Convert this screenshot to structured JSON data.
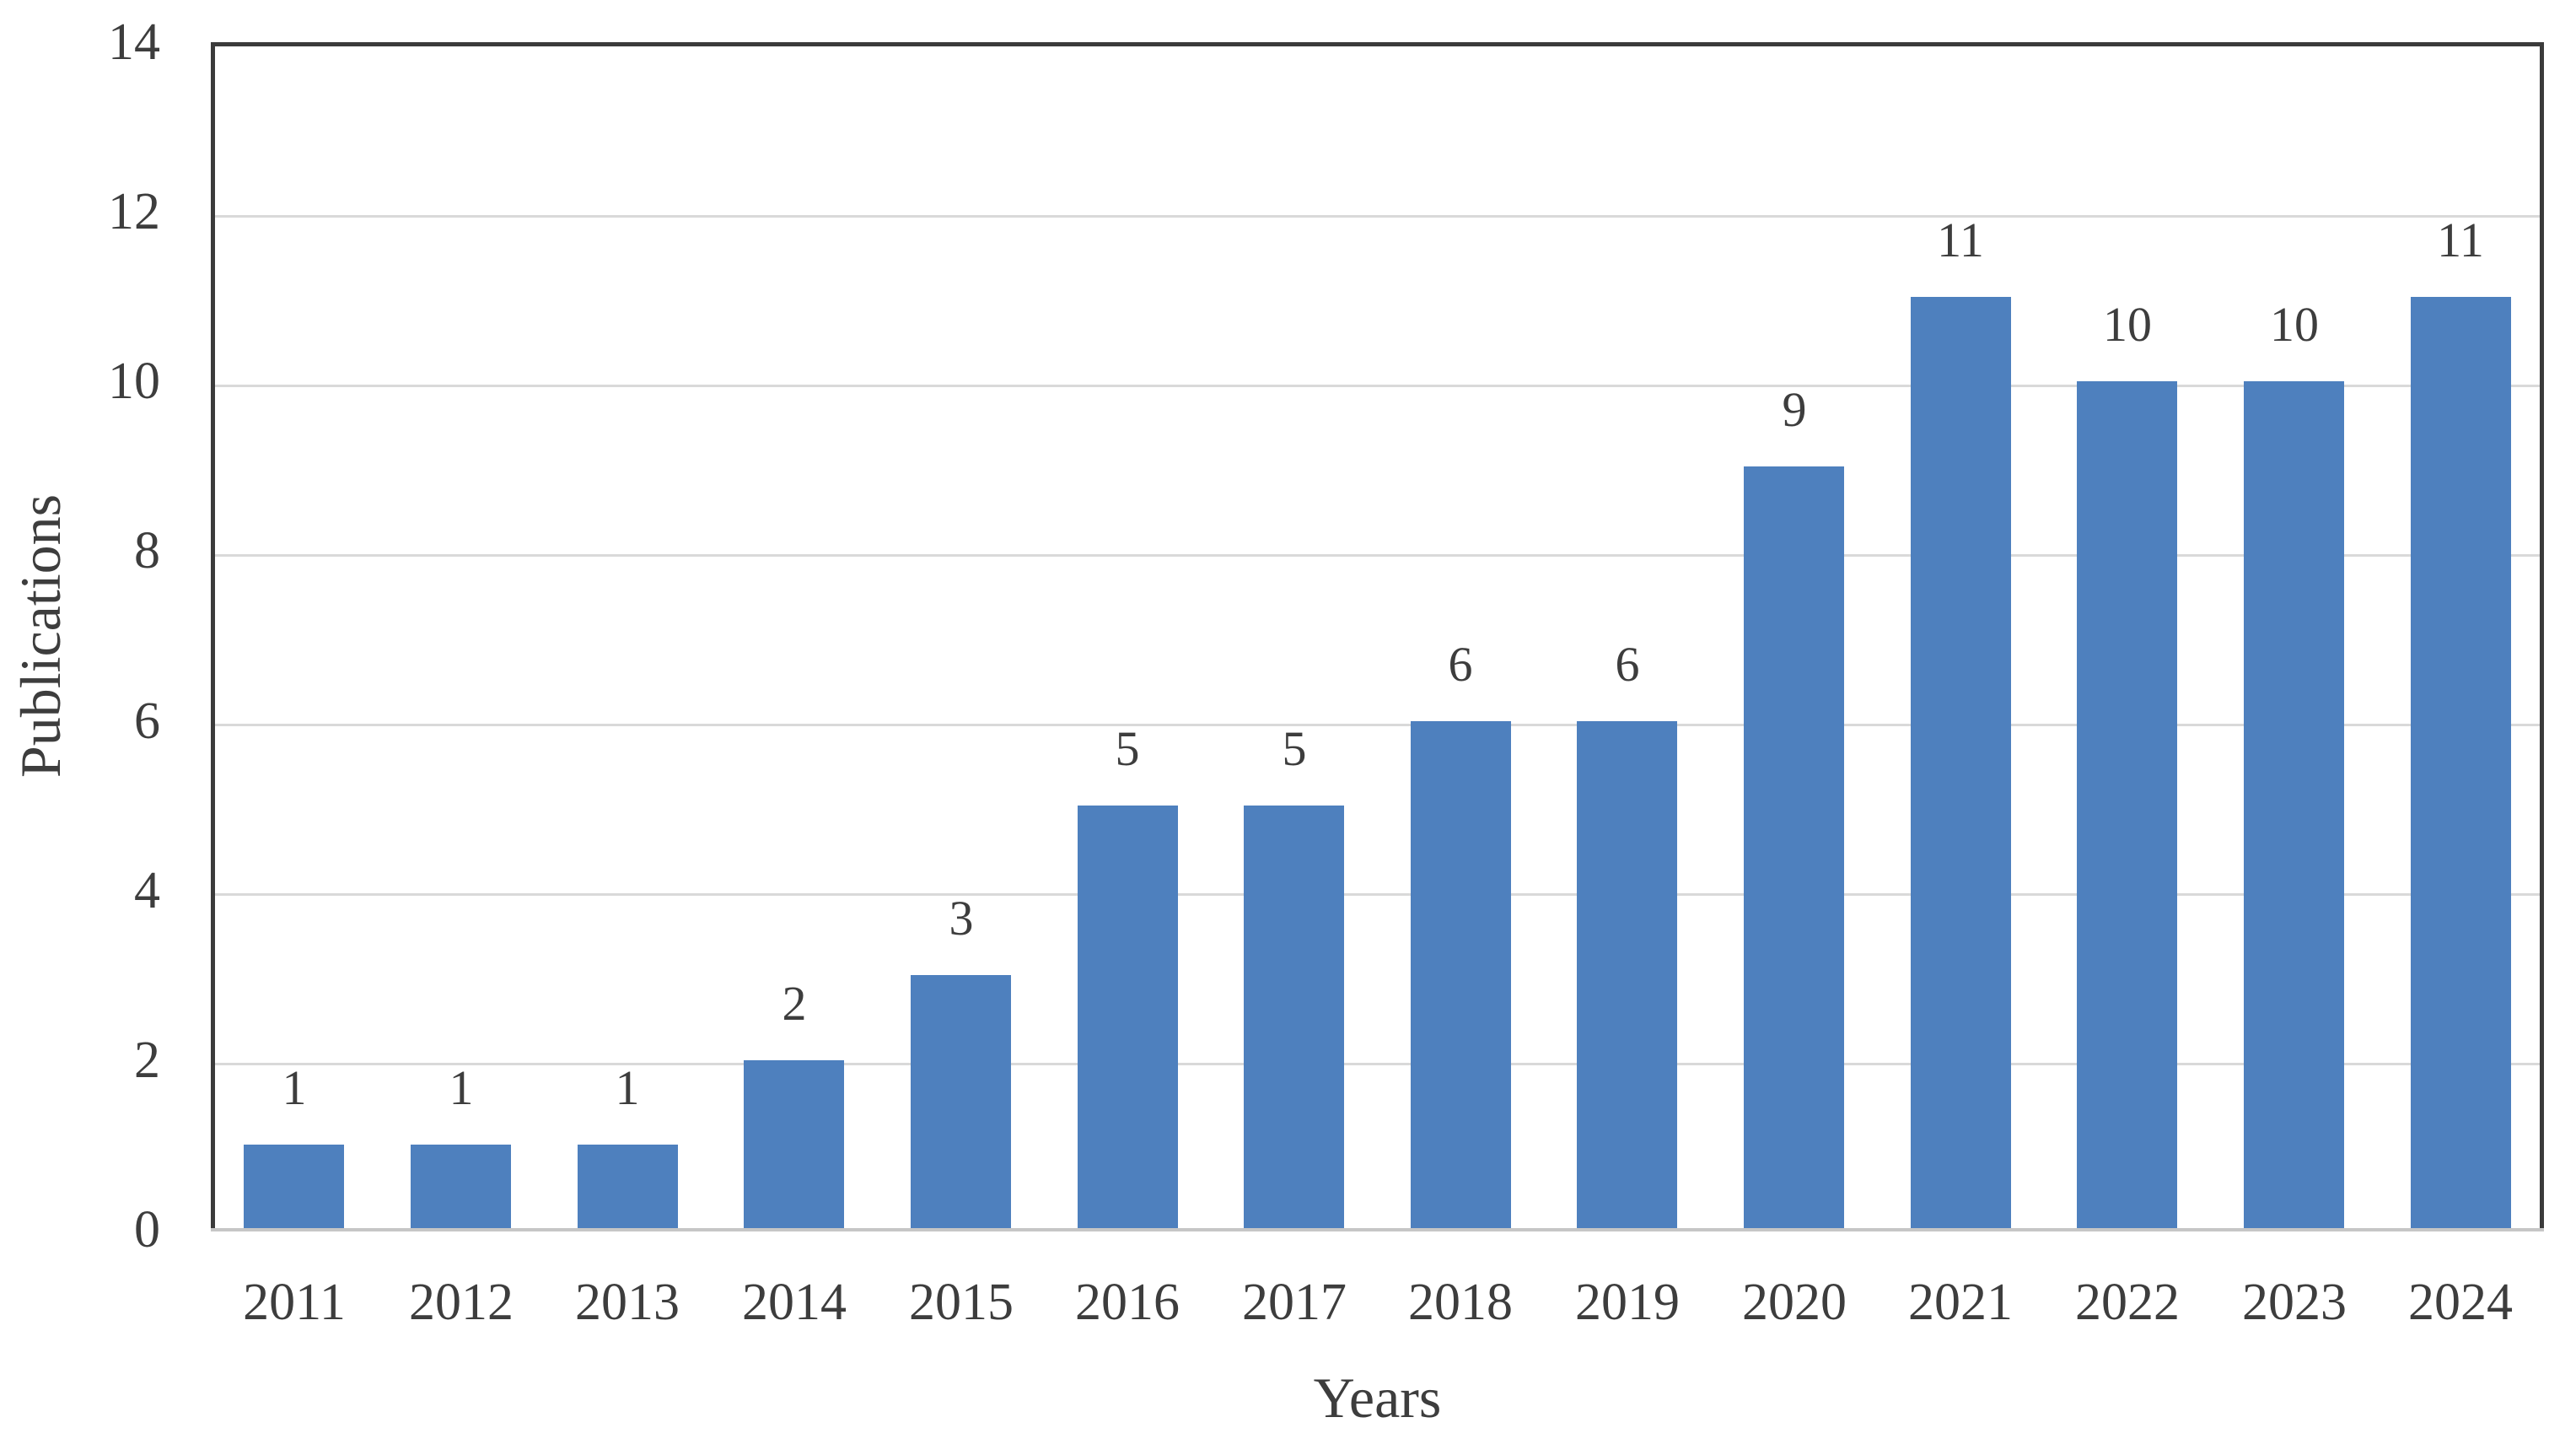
{
  "chart_data": {
    "type": "bar",
    "title": "",
    "categories": [
      "2011",
      "2012",
      "2013",
      "2014",
      "2015",
      "2016",
      "2017",
      "2018",
      "2019",
      "2020",
      "2021",
      "2022",
      "2023",
      "2024"
    ],
    "values": [
      1,
      1,
      1,
      2,
      3,
      5,
      5,
      6,
      6,
      9,
      11,
      10,
      10,
      11
    ],
    "data_labels": [
      "1",
      "1",
      "1",
      "2",
      "3",
      "5",
      "5",
      "6",
      "6",
      "9",
      "11",
      "10",
      "10",
      "11"
    ],
    "xlabel": "Years",
    "ylabel": "Publications",
    "ylim": [
      0,
      14
    ],
    "yticks": [
      0,
      2,
      4,
      6,
      8,
      10,
      12,
      14
    ],
    "grid": true,
    "legend": "none"
  },
  "colors": {
    "bar_fill": "#4E80BE",
    "grid_line": "#D9D9D9",
    "baseline": "#C6C6C6",
    "plot_border": "#3B3B3B",
    "text": "#3D3D3D",
    "background": "#FFFFFF"
  }
}
